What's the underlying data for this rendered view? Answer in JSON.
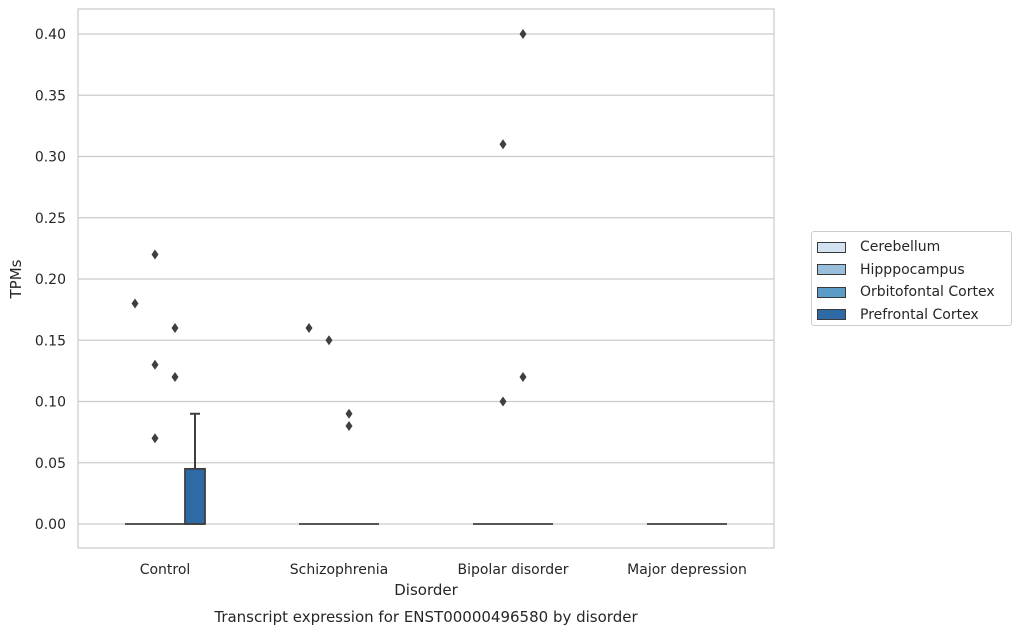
{
  "chart_data": {
    "type": "box",
    "title": "Transcript expression for ENST00000496580 by disorder",
    "xlabel": "Disorder",
    "ylabel": "TPMs",
    "ylim": [
      -0.02,
      0.42
    ],
    "yticks": [
      0.0,
      0.05,
      0.1,
      0.15,
      0.2,
      0.25,
      0.3,
      0.35,
      0.4
    ],
    "ytick_labels": [
      "0.00",
      "0.05",
      "0.10",
      "0.15",
      "0.20",
      "0.25",
      "0.30",
      "0.35",
      "0.40"
    ],
    "categories": [
      "Control",
      "Schizophrenia",
      "Bipolar disorder",
      "Major depression"
    ],
    "grid": "horizontal",
    "legend_position": "right",
    "series": [
      {
        "name": "Cerebellum",
        "color": "#d2e2f0",
        "boxes": [
          {
            "q1": 0,
            "median": 0,
            "q3": 0,
            "whisker_low": 0,
            "whisker_high": 0,
            "outliers": [
              0.18
            ]
          },
          {
            "q1": 0,
            "median": 0,
            "q3": 0,
            "whisker_low": 0,
            "whisker_high": 0,
            "outliers": [
              0.16
            ]
          },
          {
            "q1": 0,
            "median": 0,
            "q3": 0,
            "whisker_low": 0,
            "whisker_high": 0,
            "outliers": []
          },
          {
            "q1": 0,
            "median": 0,
            "q3": 0,
            "whisker_low": 0,
            "whisker_high": 0,
            "outliers": []
          }
        ]
      },
      {
        "name": "Hipppocampus",
        "color": "#97bfdc",
        "boxes": [
          {
            "q1": 0,
            "median": 0,
            "q3": 0,
            "whisker_low": 0,
            "whisker_high": 0,
            "outliers": [
              0.22,
              0.13,
              0.07
            ]
          },
          {
            "q1": 0,
            "median": 0,
            "q3": 0,
            "whisker_low": 0,
            "whisker_high": 0,
            "outliers": [
              0.15
            ]
          },
          {
            "q1": 0,
            "median": 0,
            "q3": 0,
            "whisker_low": 0,
            "whisker_high": 0,
            "outliers": [
              0.31,
              0.1
            ]
          },
          {
            "q1": 0,
            "median": 0,
            "q3": 0,
            "whisker_low": 0,
            "whisker_high": 0,
            "outliers": []
          }
        ]
      },
      {
        "name": "Orbitofontal Cortex",
        "color": "#5b9bc8",
        "boxes": [
          {
            "q1": 0,
            "median": 0,
            "q3": 0,
            "whisker_low": 0,
            "whisker_high": 0,
            "outliers": [
              0.16,
              0.12
            ]
          },
          {
            "q1": 0,
            "median": 0,
            "q3": 0,
            "whisker_low": 0,
            "whisker_high": 0,
            "outliers": [
              0.09,
              0.08
            ]
          },
          {
            "q1": 0,
            "median": 0,
            "q3": 0,
            "whisker_low": 0,
            "whisker_high": 0,
            "outliers": [
              0.4,
              0.12
            ]
          },
          {
            "q1": 0,
            "median": 0,
            "q3": 0,
            "whisker_low": 0,
            "whisker_high": 0,
            "outliers": []
          }
        ]
      },
      {
        "name": "Prefrontal Cortex",
        "color": "#2d6aa6",
        "boxes": [
          {
            "q1": 0,
            "median": 0,
            "q3": 0.045,
            "whisker_low": 0,
            "whisker_high": 0.09,
            "outliers": []
          },
          {
            "q1": 0,
            "median": 0,
            "q3": 0,
            "whisker_low": 0,
            "whisker_high": 0,
            "outliers": []
          },
          {
            "q1": 0,
            "median": 0,
            "q3": 0,
            "whisker_low": 0,
            "whisker_high": 0,
            "outliers": []
          },
          {
            "q1": 0,
            "median": 0,
            "q3": 0,
            "whisker_low": 0,
            "whisker_high": 0,
            "outliers": []
          }
        ]
      }
    ]
  }
}
